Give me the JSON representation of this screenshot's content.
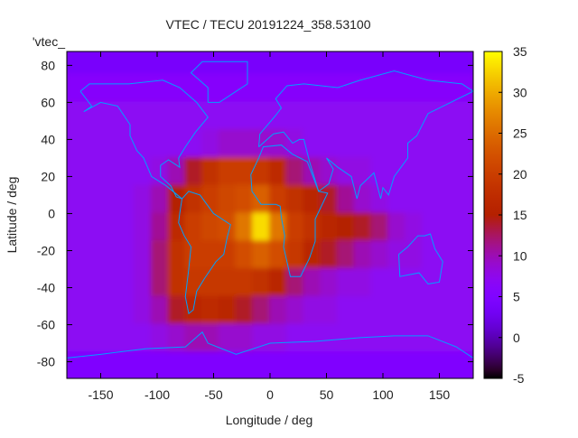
{
  "chart_data": {
    "type": "heatmap",
    "title": "VTEC / TECU 20191224_358.53100",
    "xlabel": "Longitude / deg",
    "ylabel": "Latitude / deg",
    "key_label": "'vtec_",
    "xlim": [
      -180,
      180
    ],
    "ylim": [
      -89,
      87.5
    ],
    "xticks": [
      -150,
      -100,
      -50,
      0,
      50,
      100,
      150
    ],
    "yticks": [
      -80,
      -60,
      -40,
      -20,
      0,
      20,
      40,
      60,
      80
    ],
    "cbrange": [
      -5,
      35
    ],
    "cbticks": [
      -5,
      0,
      5,
      10,
      15,
      20,
      25,
      30,
      35
    ],
    "colormap": "gnuplot rgbformulae 7,5,15",
    "coastline_color": "#00a0ff",
    "lon_centers": [
      -172.5,
      -157.5,
      -142.5,
      -127.5,
      -112.5,
      -97.5,
      -82.5,
      -67.5,
      -52.5,
      -37.5,
      -22.5,
      -7.5,
      7.5,
      22.5,
      37.5,
      52.5,
      67.5,
      82.5,
      97.5,
      112.5,
      127.5,
      142.5,
      157.5,
      172.5
    ],
    "lat_centers": [
      82.5,
      67.5,
      52.5,
      37.5,
      22.5,
      7.5,
      -7.5,
      -22.5,
      -37.5,
      -52.5,
      -67.5,
      -82.5
    ],
    "values": [
      [
        4,
        4,
        4,
        4,
        4,
        4,
        4,
        4,
        4,
        4,
        4,
        4,
        4,
        4,
        4,
        4,
        4,
        4,
        4,
        4,
        4,
        4,
        4,
        4
      ],
      [
        6,
        6,
        6,
        6,
        6,
        6,
        6,
        6,
        6,
        6,
        6,
        6,
        6,
        6,
        6,
        6,
        6,
        6,
        6,
        6,
        6,
        6,
        6,
        6
      ],
      [
        7,
        7,
        7,
        7,
        7,
        7,
        7,
        7,
        7,
        7,
        7,
        7,
        7,
        7,
        7,
        7,
        7,
        7,
        7,
        7,
        7,
        7,
        7,
        7
      ],
      [
        7,
        7,
        7,
        7,
        7,
        7,
        7,
        7,
        8,
        9,
        9,
        9,
        9,
        8,
        7,
        7,
        7,
        7,
        7,
        7,
        7,
        7,
        7,
        7
      ],
      [
        7,
        7,
        7,
        7,
        7,
        8,
        10,
        14,
        18,
        20,
        20,
        19,
        17,
        12,
        10,
        9,
        8,
        8,
        7,
        7,
        7,
        7,
        7,
        7
      ],
      [
        7,
        7,
        7,
        7,
        8,
        10,
        15,
        18,
        20,
        21,
        22,
        24,
        20,
        18,
        16,
        14,
        11,
        9,
        8,
        7,
        7,
        7,
        7,
        7
      ],
      [
        7,
        7,
        7,
        7,
        8,
        11,
        17,
        20,
        21,
        22,
        26,
        33,
        26,
        20,
        18,
        16,
        15,
        14,
        12,
        9,
        8,
        7,
        7,
        7
      ],
      [
        7,
        7,
        7,
        7,
        8,
        12,
        18,
        20,
        20,
        20,
        22,
        24,
        22,
        19,
        16,
        14,
        12,
        10,
        9,
        8,
        8,
        7,
        7,
        7
      ],
      [
        7,
        7,
        7,
        7,
        8,
        12,
        18,
        19,
        19,
        19,
        19,
        18,
        16,
        12,
        10,
        9,
        8,
        8,
        7,
        7,
        7,
        7,
        7,
        7
      ],
      [
        7,
        7,
        7,
        7,
        8,
        10,
        14,
        16,
        17,
        16,
        14,
        12,
        10,
        9,
        8,
        8,
        7,
        7,
        7,
        7,
        7,
        7,
        7,
        7
      ],
      [
        7,
        7,
        7,
        7,
        7,
        8,
        9,
        10,
        10,
        9,
        9,
        8,
        8,
        7,
        7,
        7,
        7,
        7,
        7,
        7,
        7,
        7,
        7,
        7
      ],
      [
        5,
        5,
        5,
        5,
        5,
        5,
        5,
        5,
        5,
        5,
        5,
        5,
        5,
        5,
        5,
        5,
        5,
        5,
        5,
        5,
        5,
        5,
        5,
        5
      ]
    ]
  }
}
